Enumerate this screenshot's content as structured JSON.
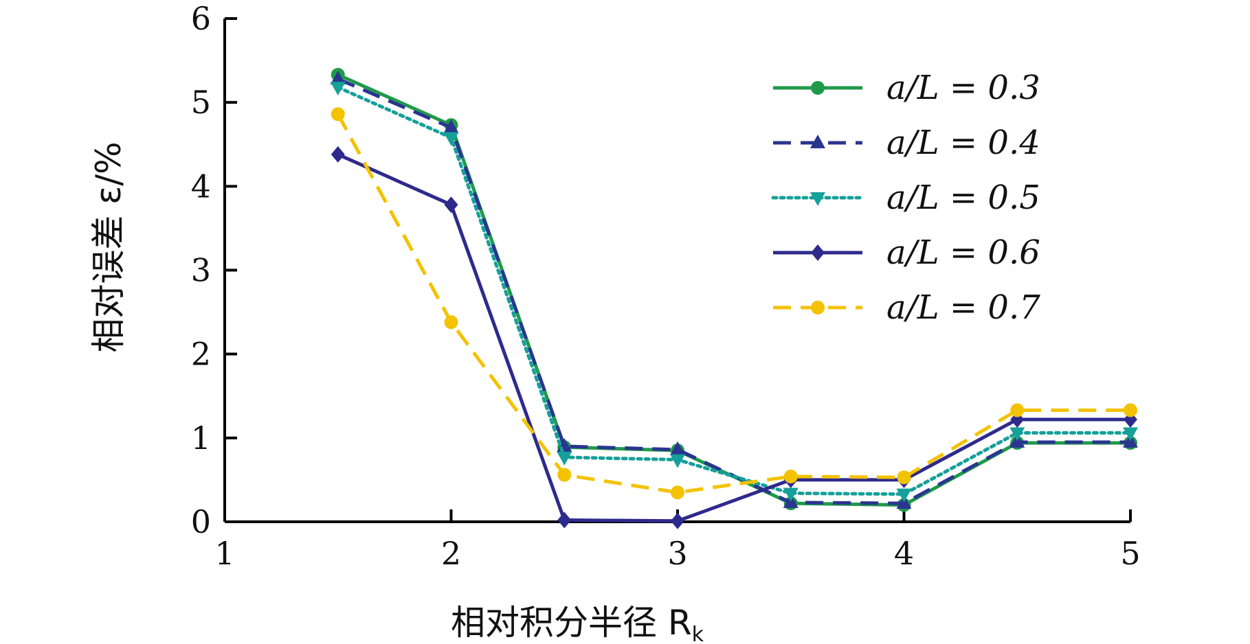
{
  "chart_data": {
    "type": "line",
    "title": "",
    "xlabel": "相对积分半径 R",
    "xlabel_sub": "k",
    "ylabel": "相对误差 ε/%",
    "xlim": [
      1,
      5
    ],
    "ylim": [
      0,
      6
    ],
    "xticks": [
      1,
      2,
      3,
      4,
      5
    ],
    "yticks": [
      0,
      1,
      2,
      3,
      4,
      5,
      6
    ],
    "x": [
      1.5,
      2.0,
      2.5,
      3.0,
      3.5,
      4.0,
      4.5,
      5.0
    ],
    "legend_position": "top-right",
    "grid": false,
    "series": [
      {
        "name": "a/L = 0.3",
        "color": "#1f9a4a",
        "dash": "solid",
        "marker": "circle",
        "values": [
          5.33,
          4.73,
          0.89,
          0.85,
          0.22,
          0.2,
          0.94,
          0.94
        ]
      },
      {
        "name": "a/L = 0.4",
        "color": "#2a3590",
        "dash": "dashed",
        "marker": "triangle-up",
        "values": [
          5.28,
          4.7,
          0.9,
          0.86,
          0.23,
          0.22,
          0.95,
          0.95
        ]
      },
      {
        "name": "a/L = 0.5",
        "color": "#15a09a",
        "dash": "dotted",
        "marker": "triangle-down",
        "values": [
          5.18,
          4.58,
          0.77,
          0.74,
          0.34,
          0.33,
          1.06,
          1.06
        ]
      },
      {
        "name": "a/L = 0.6",
        "color": "#2e2a8c",
        "dash": "solid",
        "marker": "diamond",
        "values": [
          4.38,
          3.78,
          0.02,
          0.01,
          0.5,
          0.5,
          1.22,
          1.22
        ]
      },
      {
        "name": "a/L = 0.7",
        "color": "#f3c200",
        "dash": "dashed",
        "marker": "circle",
        "values": [
          4.86,
          2.38,
          0.56,
          0.35,
          0.54,
          0.53,
          1.33,
          1.33
        ]
      }
    ]
  }
}
